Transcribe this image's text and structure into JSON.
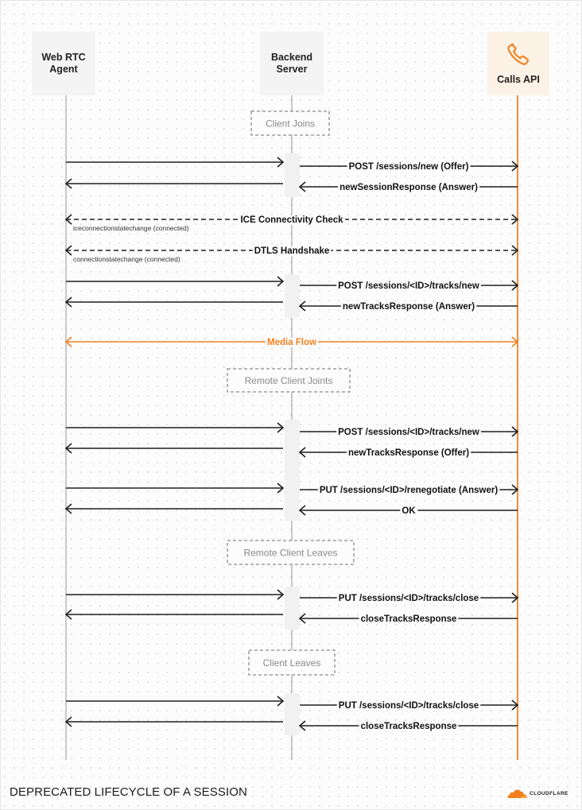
{
  "participants": [
    {
      "id": "agent",
      "name": "Web RTC Agent",
      "lines": [
        "Web RTC",
        "Agent"
      ]
    },
    {
      "id": "server",
      "name": "Backend Server",
      "lines": [
        "Backend",
        "Server"
      ]
    },
    {
      "id": "calls",
      "name": "Calls API",
      "lines": [
        "Calls API"
      ],
      "icon": "phone-icon"
    }
  ],
  "groups": [
    "Client Joins",
    "Remote Client Joints",
    "Remote Client Leaves",
    "Client Leaves"
  ],
  "messages": [
    {
      "from": "agent",
      "to": "server",
      "label": "",
      "style": "solid"
    },
    {
      "from": "server",
      "to": "calls",
      "label": "POST /sessions/new (Offer)",
      "style": "solid"
    },
    {
      "from": "server",
      "to": "agent",
      "label": "",
      "style": "solid"
    },
    {
      "from": "calls",
      "to": "server",
      "label": "newSessionResponse (Answer)",
      "style": "solid"
    },
    {
      "from": "agent",
      "to": "calls",
      "label": "ICE Connectivity Check",
      "style": "dashed",
      "bidirectional": true,
      "note": "iceconnectionstatechange (connected)"
    },
    {
      "from": "agent",
      "to": "calls",
      "label": "DTLS Handshake",
      "style": "dashed",
      "bidirectional": true,
      "note": "connectionstatechange (connected)"
    },
    {
      "from": "agent",
      "to": "server",
      "label": "",
      "style": "solid"
    },
    {
      "from": "server",
      "to": "calls",
      "label": "POST /sessions/<ID>/tracks/new",
      "style": "solid"
    },
    {
      "from": "server",
      "to": "agent",
      "label": "",
      "style": "solid"
    },
    {
      "from": "calls",
      "to": "server",
      "label": "newTracksResponse (Answer)",
      "style": "solid"
    },
    {
      "from": "agent",
      "to": "calls",
      "label": "Media Flow",
      "style": "media",
      "bidirectional": true
    },
    {
      "from": "agent",
      "to": "server",
      "label": "",
      "style": "solid"
    },
    {
      "from": "server",
      "to": "calls",
      "label": "POST /sessions/<ID>/tracks/new",
      "style": "solid"
    },
    {
      "from": "server",
      "to": "agent",
      "label": "",
      "style": "solid"
    },
    {
      "from": "calls",
      "to": "server",
      "label": "newTracksResponse (Offer)",
      "style": "solid"
    },
    {
      "from": "agent",
      "to": "server",
      "label": "",
      "style": "solid"
    },
    {
      "from": "server",
      "to": "calls",
      "label": "PUT /sessions/<ID>/renegotiate (Answer)",
      "style": "solid"
    },
    {
      "from": "server",
      "to": "agent",
      "label": "",
      "style": "solid"
    },
    {
      "from": "calls",
      "to": "server",
      "label": "OK",
      "style": "solid"
    },
    {
      "from": "agent",
      "to": "server",
      "label": "",
      "style": "solid"
    },
    {
      "from": "server",
      "to": "calls",
      "label": "PUT /sessions/<ID>/tracks/close",
      "style": "solid"
    },
    {
      "from": "server",
      "to": "agent",
      "label": "",
      "style": "solid"
    },
    {
      "from": "calls",
      "to": "server",
      "label": "closeTracksResponse",
      "style": "solid"
    },
    {
      "from": "agent",
      "to": "server",
      "label": "",
      "style": "solid"
    },
    {
      "from": "server",
      "to": "calls",
      "label": "PUT /sessions/<ID>/tracks/close",
      "style": "solid"
    },
    {
      "from": "server",
      "to": "agent",
      "label": "",
      "style": "solid"
    },
    {
      "from": "calls",
      "to": "server",
      "label": "closeTracksResponse",
      "style": "solid"
    }
  ],
  "footer": {
    "title": "DEPRECATED LIFECYCLE OF A SESSION",
    "logo_text": "CLOUDFLARE"
  },
  "colors": {
    "accent": "#f38020",
    "line": "#1f1f1f",
    "lifeline": "#b8b8b8",
    "group_border": "#8a8a8a",
    "group_text": "#8a8a8a",
    "activation": "#f1f1f2"
  }
}
